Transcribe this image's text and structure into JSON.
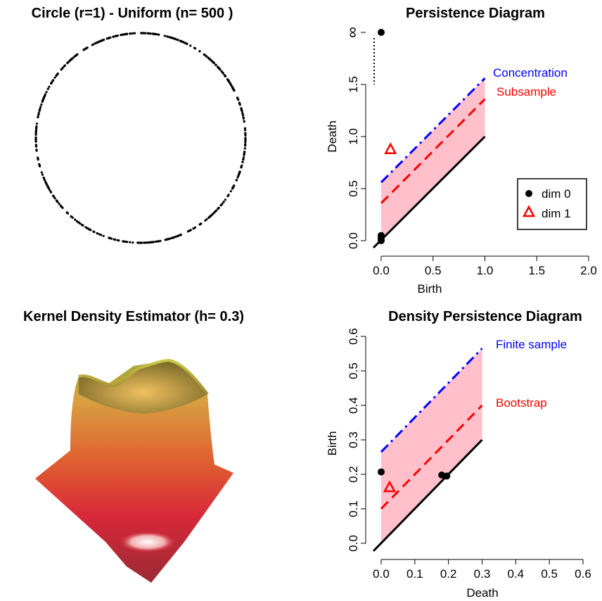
{
  "chart_data": [
    {
      "type": "scatter",
      "title": "Circle (r=1) - Uniform (n= 500 )",
      "radius": 1,
      "n": 500,
      "description_points": "uniform sample on unit circle",
      "color": "#000000"
    },
    {
      "type": "scatter",
      "title": "Persistence Diagram",
      "xlabel": "Birth",
      "ylabel": "Death",
      "xlim": [
        0,
        2
      ],
      "ylim": [
        0,
        2
      ],
      "xticks": [
        "0.0",
        "0.5",
        "1.0",
        "1.5",
        "2.0"
      ],
      "yticks": [
        "0.0",
        "0.5",
        "1.0",
        "1.5"
      ],
      "inf_label": "∞",
      "band_color": "#ffc0cb",
      "bands": [
        {
          "name": "Concentration",
          "offset": 0.56,
          "color": "#0000ff",
          "style": "dashdot"
        },
        {
          "name": "Subsample",
          "offset": 0.36,
          "color": "#ff0000",
          "style": "dashed"
        }
      ],
      "points_dim0": [
        [
          0,
          2
        ],
        [
          0,
          0.05
        ],
        [
          0,
          0.03
        ],
        [
          0,
          0.01
        ],
        [
          0,
          0.0
        ]
      ],
      "points_dim1": [
        [
          0.09,
          0.88
        ]
      ],
      "legend": [
        "dim 0",
        "dim 1"
      ],
      "legend_position": "right"
    },
    {
      "type": "surface",
      "title": "Kernel Density Estimator (h= 0.3)"
    },
    {
      "type": "scatter",
      "title": "Density Persistence Diagram",
      "xlabel": "Death",
      "ylabel": "Birth",
      "xlim": [
        0,
        0.6
      ],
      "ylim": [
        0,
        0.6
      ],
      "xticks": [
        "0.0",
        "0.1",
        "0.2",
        "0.3",
        "0.4",
        "0.5",
        "0.6"
      ],
      "yticks": [
        "0.0",
        "0.1",
        "0.2",
        "0.3",
        "0.4",
        "0.5",
        "0.6"
      ],
      "band_color": "#ffc0cb",
      "band_xmax": 0.3,
      "bands": [
        {
          "name": "Finite sample",
          "offset": 0.265,
          "color": "#0000ff",
          "style": "dashdot"
        },
        {
          "name": "Bootstrap",
          "offset": 0.1,
          "color": "#ff0000",
          "style": "dashed"
        }
      ],
      "points_dim0": [
        [
          0,
          0.207
        ],
        [
          0.18,
          0.198
        ],
        [
          0.195,
          0.195
        ]
      ],
      "points_dim1": [
        [
          0.025,
          0.163
        ]
      ]
    }
  ]
}
